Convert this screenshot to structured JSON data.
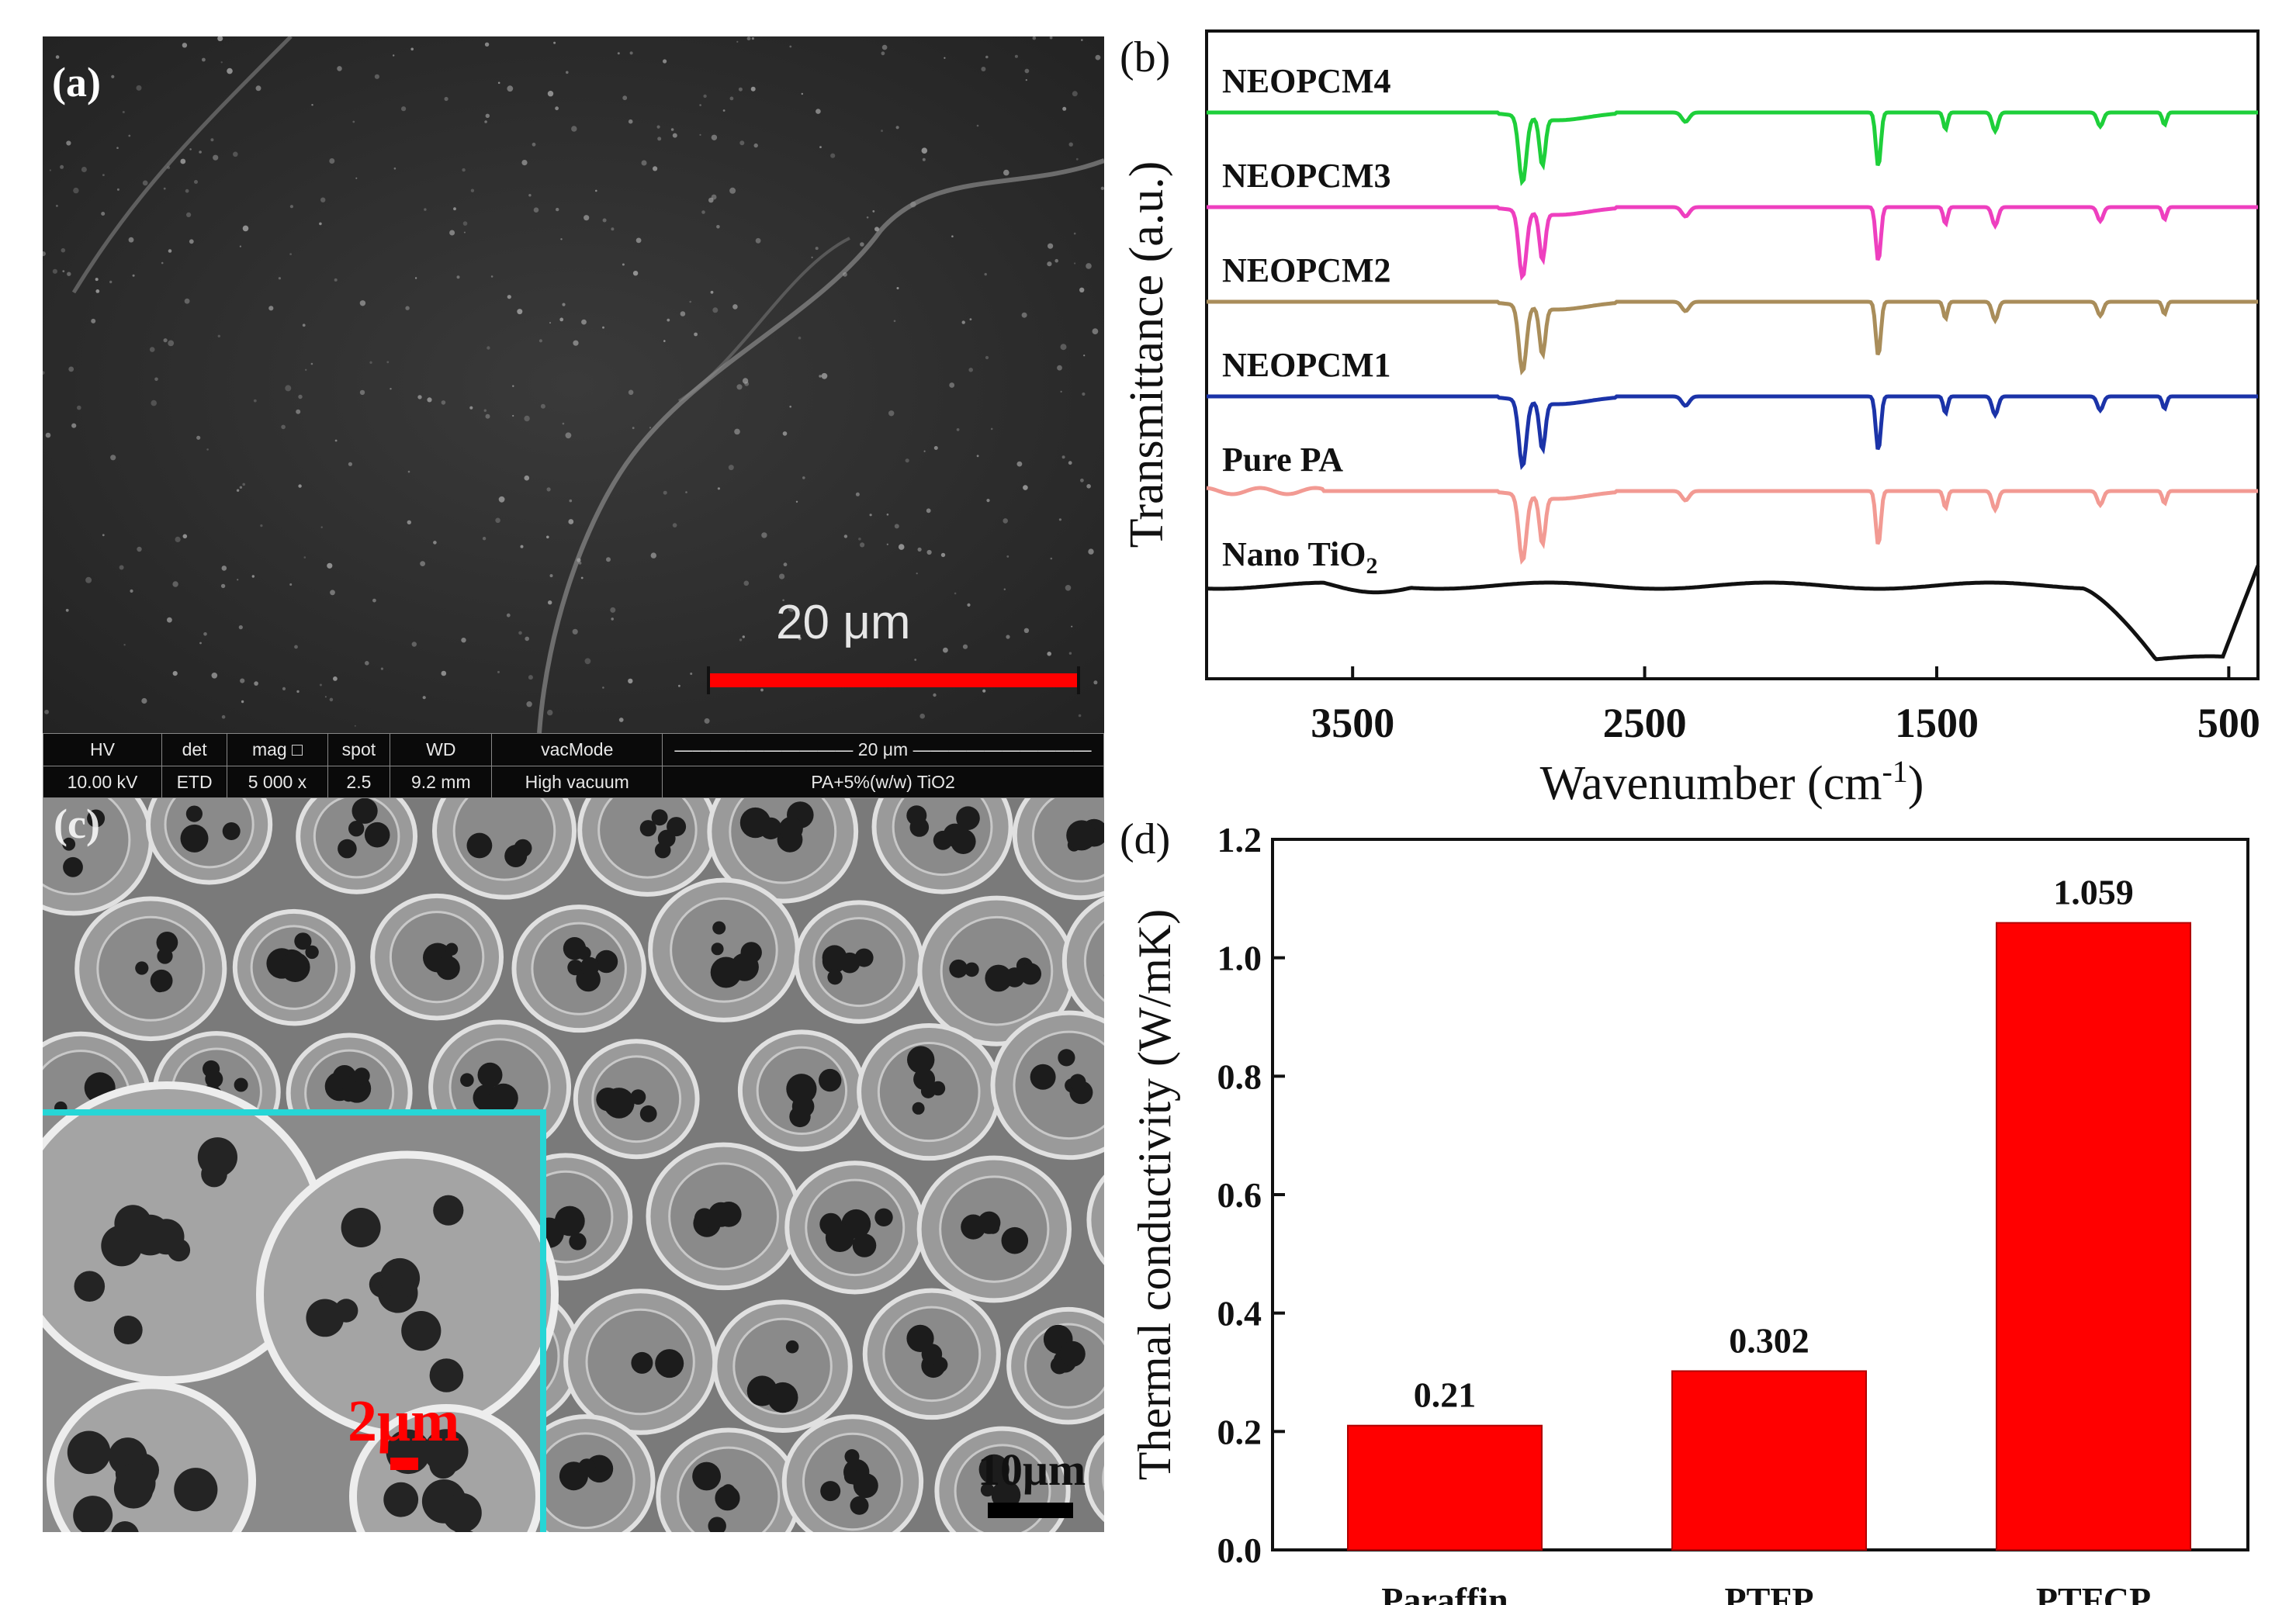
{
  "panel_a": {
    "label": "(a)",
    "scale_label": "20 μm",
    "info_bar": {
      "headers": [
        "HV",
        "det",
        "mag □",
        "spot",
        "WD",
        "vacMode"
      ],
      "values": [
        "10.00 kV",
        "ETD",
        "5 000 x",
        "2.5",
        "9.2 mm",
        "High vacuum"
      ],
      "scale_text": "20 μm",
      "sample": "PA+5%(w/w) TiO2"
    }
  },
  "panel_c": {
    "label": "(c)",
    "inset_scale": "2μm",
    "scale_label": "10μm"
  },
  "colors": {
    "neopcm4": "#1ecf3a",
    "neopcm3": "#ee3fbf",
    "neopcm2": "#a98d5a",
    "neopcm1": "#1b33a8",
    "pure_pa": "#f29a93",
    "nano_tio2": "#111111",
    "bar": "#ff0000",
    "inset_border": "#26d6d6"
  },
  "chart_data": [
    {
      "type": "line",
      "panel": "(b)",
      "title": "",
      "xlabel": "Wavenumber (cm-1)",
      "ylabel": "Transmittance (a.u.)",
      "xlim": [
        4000,
        400
      ],
      "xticks": [
        3500,
        2500,
        1500,
        500
      ],
      "series": [
        {
          "name": "NEOPCM4",
          "offset": 5
        },
        {
          "name": "NEOPCM3",
          "offset": 4
        },
        {
          "name": "NEOPCM2",
          "offset": 3
        },
        {
          "name": "NEOPCM1",
          "offset": 2
        },
        {
          "name": "Pure PA",
          "offset": 1
        },
        {
          "name": "Nano TiO2",
          "offset": 0
        }
      ],
      "absorption_bands_cm-1": [
        2918,
        2850,
        2360,
        1700,
        1470,
        1300,
        940,
        720
      ]
    },
    {
      "type": "bar",
      "panel": "(d)",
      "title": "",
      "xlabel": "",
      "ylabel": "Thermal conductivity (W/mK)",
      "categories": [
        "Paraffin",
        "PTFP",
        "PTFCP"
      ],
      "values": [
        0.21,
        0.302,
        1.059
      ],
      "value_labels": [
        "0.21",
        "0.302",
        "1.059"
      ],
      "ylim": [
        0.0,
        1.2
      ],
      "yticks": [
        "0.0",
        "0.2",
        "0.4",
        "0.6",
        "0.8",
        "1.0",
        "1.2"
      ]
    }
  ]
}
